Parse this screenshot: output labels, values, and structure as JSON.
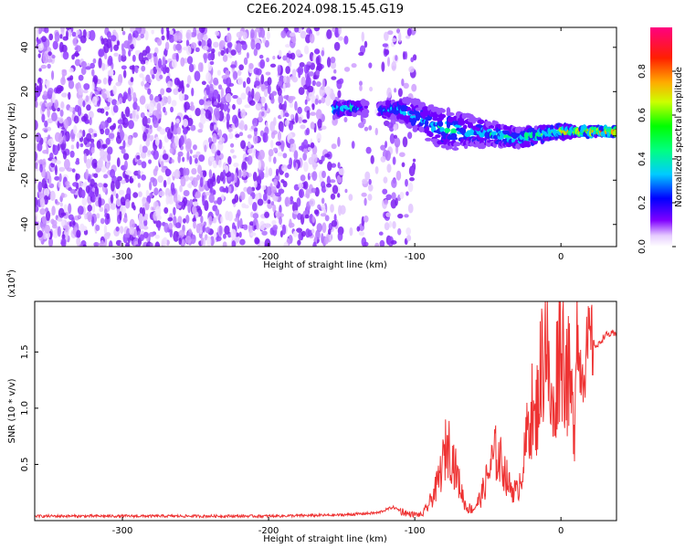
{
  "chart_data": [
    {
      "type": "heatmap",
      "title": "C2E6.2024.098.15.45.G19",
      "xlabel": "Height of straight line (km)",
      "ylabel": "Frequency (Hz)",
      "xlim": [
        -360,
        38
      ],
      "ylim": [
        -50,
        49
      ],
      "xticks": [
        -300,
        -200,
        -100,
        0
      ],
      "xtick_labels": [
        "-300",
        "-200",
        "-100",
        "0"
      ],
      "yticks": [
        -40,
        -20,
        0,
        20,
        40
      ],
      "ytick_labels": [
        "-40",
        "-20",
        "0",
        "20",
        "40"
      ],
      "colorbar": {
        "label": "Normalized spectral amplitude",
        "range": [
          0,
          1
        ],
        "ticks": [
          0.0,
          0.2,
          0.4,
          0.6,
          0.8
        ],
        "tick_labels": [
          "0.0",
          "0.2",
          "0.4",
          "0.6",
          "0.8"
        ],
        "colors": [
          "#ffffff",
          "#d9b3ff",
          "#8000ff",
          "#0000ff",
          "#00e0ff",
          "#00ff00",
          "#ffff00",
          "#ff8000",
          "#ff0000",
          "#ff0080"
        ]
      },
      "signal_track": {
        "x": [
          -155,
          -140,
          -130,
          -120,
          -110,
          -100,
          -90,
          -80,
          -70,
          -60,
          -50,
          -40,
          -30,
          -20,
          -10,
          0,
          10,
          20,
          30,
          38
        ],
        "center_hz": [
          12,
          13,
          12,
          12,
          12,
          9,
          6,
          3,
          2,
          2,
          1,
          0,
          -1,
          0,
          1,
          2,
          2,
          2,
          2,
          2
        ],
        "spread_hz": [
          3,
          3,
          3,
          4,
          5,
          7,
          8,
          9,
          8,
          7,
          6,
          5,
          4,
          4,
          3,
          3,
          2,
          2,
          2,
          2
        ],
        "peak_amplitude": [
          0.5,
          0.55,
          0,
          0.4,
          0.45,
          0.4,
          0.45,
          0.5,
          0.5,
          0.45,
          0.45,
          0.5,
          0.6,
          0.6,
          0.65,
          0.75,
          0.8,
          0.85,
          0.85,
          0.85
        ]
      },
      "noise_gaps_x": [
        [
          -150,
          -137
        ],
        [
          -130,
          -122
        ]
      ]
    },
    {
      "type": "line",
      "xlabel": "Height of straight line (km)",
      "ylabel": "SNR (10 * v/v)",
      "scale_label": "(x10",
      "scale_exp": "4",
      "scale_close": ")",
      "xlim": [
        -360,
        38
      ],
      "ylim": [
        0,
        1.95
      ],
      "xticks": [
        -300,
        -200,
        -100,
        0
      ],
      "xtick_labels": [
        "-300",
        "-200",
        "-100",
        "0"
      ],
      "yticks": [
        0.5,
        1.0,
        1.5
      ],
      "ytick_labels": [
        "0.5",
        "1.0",
        "1.5"
      ],
      "color": "#ee3333",
      "series": [
        {
          "name": "SNR",
          "x": [
            -360,
            -300,
            -250,
            -200,
            -150,
            -125,
            -115,
            -105,
            -95,
            -90,
            -85,
            -80,
            -78,
            -75,
            -70,
            -65,
            -60,
            -55,
            -50,
            -45,
            -40,
            -35,
            -30,
            -25,
            -22,
            -20,
            -18,
            -15,
            -12,
            -10,
            -8,
            -5,
            -2,
            0,
            3,
            6,
            9,
            11,
            12,
            15,
            18,
            20,
            25,
            30,
            35,
            38
          ],
          "y": [
            0.04,
            0.04,
            0.04,
            0.04,
            0.05,
            0.07,
            0.12,
            0.06,
            0.05,
            0.15,
            0.3,
            0.55,
            0.7,
            0.6,
            0.35,
            0.12,
            0.1,
            0.2,
            0.4,
            0.6,
            0.5,
            0.3,
            0.25,
            0.55,
            0.9,
            1.0,
            0.8,
            1.2,
            1.5,
            1.75,
            1.1,
            0.9,
            1.5,
            1.6,
            1.4,
            1.2,
            0.8,
            1.95,
            1.4,
            1.35,
            1.5,
            1.6,
            1.55,
            1.65,
            1.66,
            1.65
          ]
        }
      ]
    }
  ]
}
